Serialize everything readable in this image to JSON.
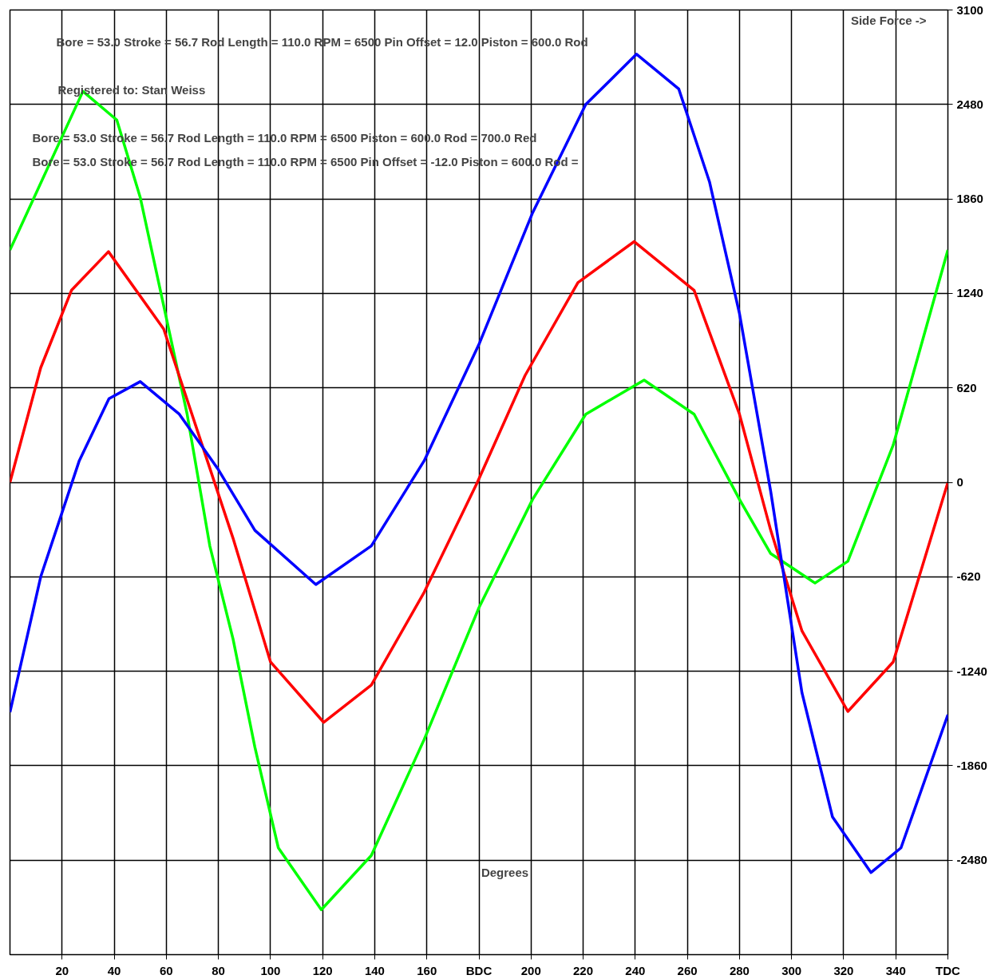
{
  "chart_data": {
    "type": "line",
    "xlabel": "Degrees",
    "ylabel": "Side Force ->",
    "annotations": [
      "Bore = 53.0   Stroke = 56.7   Rod Length = 110.0   RPM = 6500   Pin Offset = 12.0   Piston = 600.0   Rod",
      "Registered to:   Stan Weiss",
      "Bore = 53.0   Stroke = 56.7   Rod Length = 110.0   RPM = 6500   Piston = 600.0   Rod = 700.0   Red",
      "Bore = 53.0   Stroke = 56.7   Rod Length = 110.0   RPM = 6500   Pin Offset = -12.0   Piston = 600.0   Rod ="
    ],
    "xlim": [
      0,
      360
    ],
    "ylim": [
      -3100,
      3100
    ],
    "xticks": [
      20,
      40,
      60,
      80,
      100,
      120,
      140,
      160,
      {
        "value": 180,
        "label": "BDC"
      },
      200,
      220,
      240,
      260,
      280,
      300,
      320,
      340,
      {
        "value": 360,
        "label": "TDC"
      }
    ],
    "yticks": [
      3100,
      2480,
      1860,
      1240,
      620,
      0,
      -620,
      -1240,
      -1860,
      -2480
    ],
    "grid": true,
    "marker": "none",
    "line_style": "solid",
    "series": [
      {
        "color": "#00ff00",
        "x": [
          0,
          28,
          41,
          50,
          59,
          68,
          76.7,
          85.6,
          94,
          103,
          119.5,
          138.7,
          159,
          180,
          200.6,
          221,
          243.4,
          262.6,
          280,
          292,
          309,
          321.6,
          339,
          360
        ],
        "values": [
          1525,
          2566,
          2378,
          1870,
          1159,
          447,
          -417,
          -1027,
          -1738,
          -2399,
          -2805,
          -2449,
          -1687,
          -823,
          -112,
          447,
          671,
          447,
          -112,
          -468,
          -661,
          -518,
          244,
          1525
        ]
      },
      {
        "color": "#ff0000",
        "x": [
          0,
          11.8,
          23.6,
          37.8,
          59,
          85.6,
          100,
          120.4,
          138.7,
          159,
          179.4,
          197.7,
          218,
          239.6,
          262.6,
          280,
          292,
          304,
          321.6,
          339,
          360
        ],
        "values": [
          0,
          752,
          1260,
          1514,
          1006,
          -366,
          -1179,
          -1575,
          -1331,
          -721,
          0,
          701,
          1311,
          1580,
          1260,
          447,
          -315,
          -976,
          -1504,
          -1179,
          0
        ]
      },
      {
        "color": "#0000ff",
        "x": [
          0,
          11.8,
          26.6,
          38,
          50,
          65,
          79.7,
          94,
          117.4,
          138.7,
          159,
          180,
          200.6,
          221,
          240.5,
          256.7,
          268.5,
          280,
          292,
          304,
          315.7,
          330.5,
          342,
          360
        ],
        "values": [
          -1509,
          -620,
          142,
          549,
          661,
          447,
          91,
          -315,
          -671,
          -417,
          142,
          905,
          1769,
          2480,
          2810,
          2582,
          1972,
          1108,
          -61,
          -1382,
          -2196,
          -2561,
          -2399,
          -1525
        ]
      }
    ]
  }
}
